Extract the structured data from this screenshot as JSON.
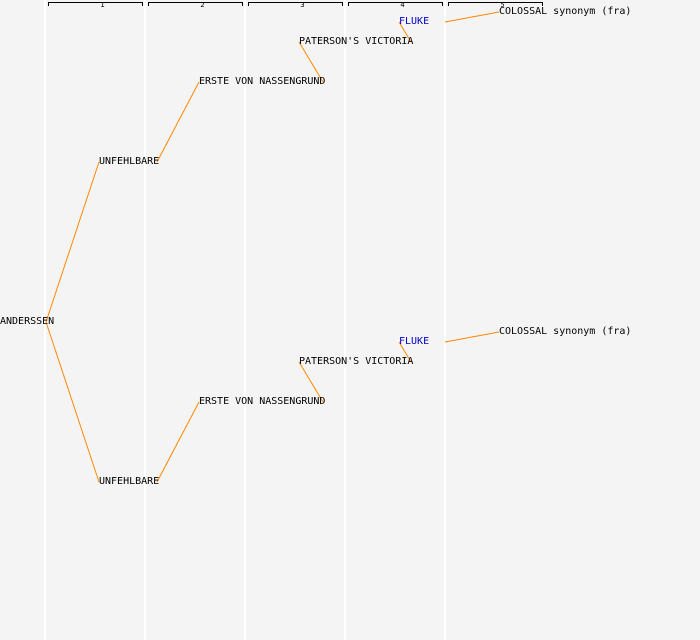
{
  "generations": [
    "1",
    "2",
    "3",
    "4",
    "5"
  ],
  "colors": {
    "link": "#ff8800",
    "text": "#000000",
    "highlight": "#0000cc",
    "background": "#f4f4f4",
    "divider": "#ffffff"
  },
  "nodes": {
    "root": {
      "label": "ANDERSSEN"
    },
    "u_top": {
      "label": "UNFEHLBARE"
    },
    "e_top": {
      "label": "ERSTE VON NASSENGRUND"
    },
    "p_top": {
      "label": "PATERSON'S VICTORIA"
    },
    "f_top": {
      "label": "FLUKE",
      "highlight": true
    },
    "c_top": {
      "label": "COLOSSAL synonym (fra)"
    },
    "u_bot": {
      "label": "UNFEHLBARE"
    },
    "e_bot": {
      "label": "ERSTE VON NASSENGRUND"
    },
    "p_bot": {
      "label": "PATERSON'S VICTORIA"
    },
    "f_bot": {
      "label": "FLUKE",
      "highlight": true
    },
    "c_bot": {
      "label": "COLOSSAL synonym (fra)"
    }
  },
  "links": [
    [
      "root",
      "u_top"
    ],
    [
      "u_top",
      "e_top"
    ],
    [
      "e_top",
      "p_top"
    ],
    [
      "p_top",
      "f_top"
    ],
    [
      "f_top",
      "c_top"
    ],
    [
      "root",
      "u_bot"
    ],
    [
      "u_bot",
      "e_bot"
    ],
    [
      "e_bot",
      "p_bot"
    ],
    [
      "p_bot",
      "f_bot"
    ],
    [
      "f_bot",
      "c_bot"
    ]
  ]
}
